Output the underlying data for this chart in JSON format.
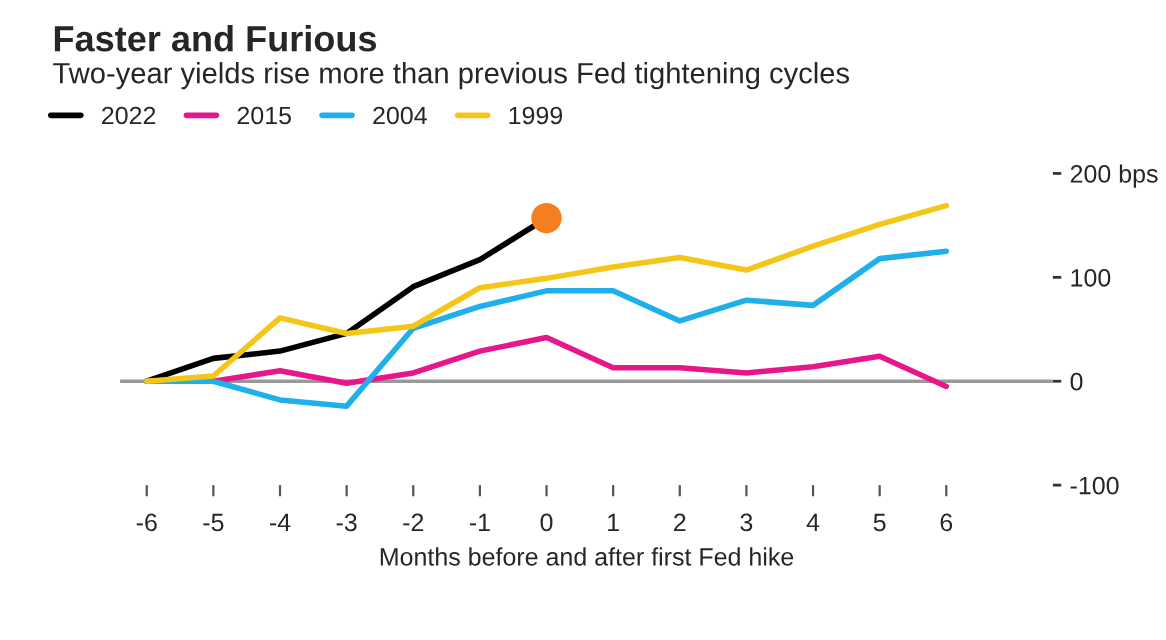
{
  "chart_data": {
    "type": "line",
    "title": "Faster and Furious",
    "subtitle": "Two-year yields rise more than previous Fed tightening cycles",
    "xlabel": "Months before and after first Fed hike",
    "x": [
      -6,
      -5,
      -4,
      -3,
      -2,
      -1,
      0,
      1,
      2,
      3,
      4,
      5,
      6
    ],
    "series": [
      {
        "name": "2022",
        "color": "#000000",
        "values": [
          0,
          22,
          29,
          46,
          91,
          117,
          157,
          null,
          null,
          null,
          null,
          null,
          null
        ]
      },
      {
        "name": "2015",
        "color": "#e8168b",
        "values": [
          0,
          0,
          10,
          -2,
          8,
          29,
          42,
          13,
          13,
          8,
          14,
          24,
          -5
        ]
      },
      {
        "name": "2004",
        "color": "#1fb0ec",
        "values": [
          0,
          0,
          -18,
          -24,
          51,
          72,
          87,
          87,
          58,
          78,
          73,
          118,
          125
        ]
      },
      {
        "name": "1999",
        "color": "#f5c518",
        "values": [
          0,
          5,
          61,
          46,
          53,
          90,
          99,
          110,
          119,
          107,
          130,
          151,
          169
        ]
      },
      {
        "type": "scatter",
        "color": "#f57f20",
        "x": [
          0
        ],
        "values": [
          157
        ],
        "marker": "circle"
      }
    ],
    "xlim": [
      -6.4,
      7.6
    ],
    "xticks": [
      -6,
      -5,
      -4,
      -3,
      -2,
      -1,
      0,
      1,
      2,
      3,
      4,
      5,
      6
    ],
    "ylim": [
      -100,
      200
    ],
    "yticks": [
      -100,
      0,
      100,
      {
        "value": 200,
        "label": "200 bps"
      }
    ],
    "ref_lines": [
      {
        "axis": "y",
        "value": 0,
        "color": "#999999"
      }
    ],
    "grid": false,
    "legend": "top left",
    "marker": "none",
    "line_style": "solid"
  }
}
